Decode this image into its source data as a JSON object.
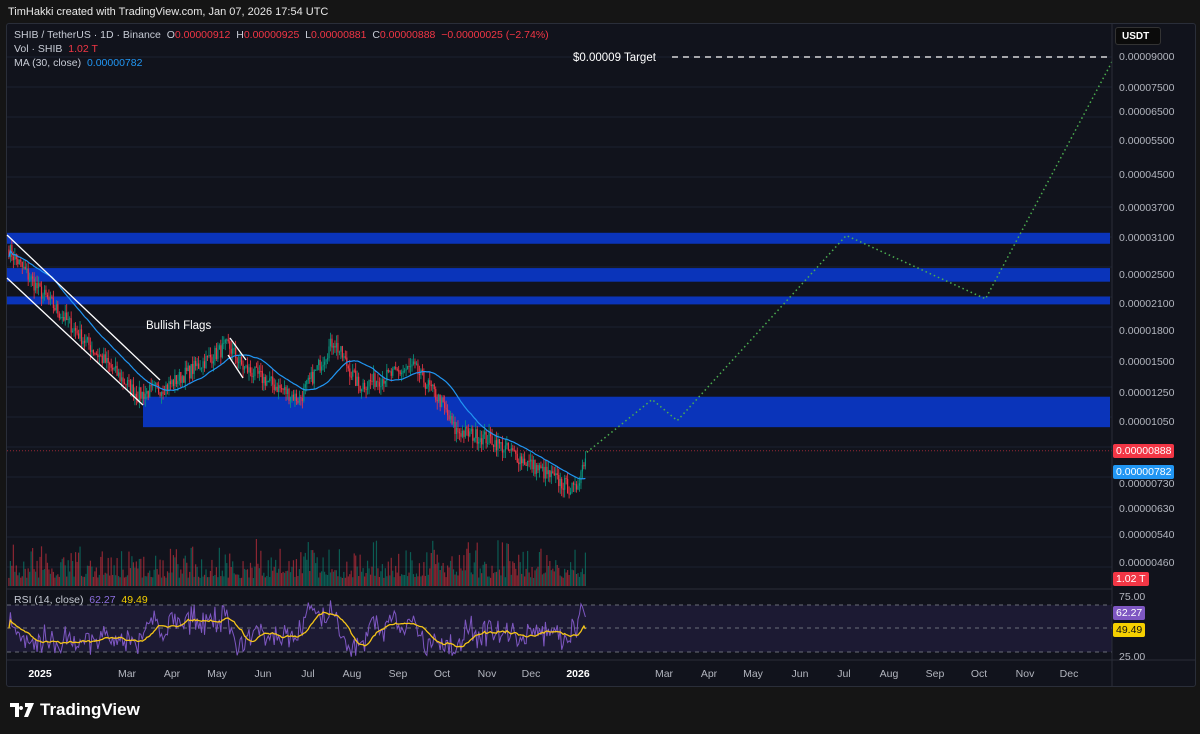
{
  "header": {
    "credit": "TimHakki created with TradingView.com, Jan 07, 2026 17:54 UTC"
  },
  "legend": {
    "symbol": "SHIB / TetherUS · 1D · Binance",
    "o_label": "O",
    "o": "0.00000912",
    "h_label": "H",
    "h": "0.00000925",
    "l_label": "L",
    "l": "0.00000881",
    "c_label": "C",
    "c": "0.00000888",
    "change": "−0.00000025 (−2.74%)",
    "vol_label": "Vol · SHIB",
    "vol": "1.02 T",
    "ma_label": "MA (30, close)",
    "ma": "0.00000782",
    "rsi_label": "RSI (14, close)",
    "rsi": "62.27",
    "rsi_ma": "49.49"
  },
  "currency_button": "USDT",
  "footer": {
    "logo": "TradingView"
  },
  "colors": {
    "up": "#089981",
    "down": "#f23645",
    "ma": "#2196f3",
    "zone": "#0a37c8",
    "projection": "#4caf50",
    "rsi": "#7e57c2",
    "rsi_ma": "#f5c518"
  },
  "chart_data": {
    "type": "candlestick",
    "scale": "log",
    "annotations": {
      "bullish_flags": "Bullish Flags",
      "target": "$0.00009 Target"
    },
    "price_axis": [
      "0.00009000",
      "0.00007500",
      "0.00006500",
      "0.00005500",
      "0.00004500",
      "0.00003700",
      "0.00003100",
      "0.00002500",
      "0.00002100",
      "0.00001800",
      "0.00001500",
      "0.00001250",
      "0.00001050",
      "0.00000730",
      "0.00000630",
      "0.00000540",
      "0.00000460"
    ],
    "price_tags": {
      "last": "0.00000888",
      "ma": "0.00000782",
      "volume": "1.02 T",
      "rsi": "62.27",
      "rsi_ma": "49.49"
    },
    "rsi_axis": [
      "75.00",
      "25.00"
    ],
    "time_axis": [
      "2025",
      "Mar",
      "Apr",
      "May",
      "Jun",
      "Jul",
      "Aug",
      "Sep",
      "Oct",
      "Nov",
      "Dec",
      "2026",
      "Mar",
      "Apr",
      "May",
      "Jun",
      "Jul",
      "Aug",
      "Sep",
      "Oct",
      "Nov",
      "Dec"
    ],
    "close_path": [
      [
        "2024-12-13",
        2.9e-05
      ],
      [
        "2025-01-02",
        2.29e-05
      ],
      [
        "2025-02-05",
        1.65e-05
      ],
      [
        "2025-03-10",
        1.23e-05
      ],
      [
        "2025-03-30",
        1.3e-05
      ],
      [
        "2025-05-10",
        1.65e-05
      ],
      [
        "2025-05-20",
        1.45e-05
      ],
      [
        "2025-06-27",
        1.2e-05
      ],
      [
        "2025-07-20",
        1.7e-05
      ],
      [
        "2025-08-06",
        1.3e-05
      ],
      [
        "2025-09-12",
        1.45e-05
      ],
      [
        "2025-09-30",
        1.19e-05
      ],
      [
        "2025-10-10",
        1e-05
      ],
      [
        "2025-11-03",
        9.5e-06
      ],
      [
        "2025-11-23",
        8.5e-06
      ],
      [
        "2025-12-30",
        7e-06
      ],
      [
        "2026-01-07",
        8.88e-06
      ]
    ],
    "zones": [
      {
        "from": 3e-05,
        "to": 3.2e-05
      },
      {
        "from": 2.4e-05,
        "to": 2.6e-05
      },
      {
        "from": 2.1e-05,
        "to": 2.2e-05
      },
      {
        "from": 1.02e-05,
        "to": 1.22e-05
      }
    ],
    "projection": [
      [
        "2026-01-07",
        8.8e-06
      ],
      [
        "2026-02-20",
        1.2e-05
      ],
      [
        "2026-03-09",
        1.06e-05
      ],
      [
        "2026-07-01",
        3.15e-05
      ],
      [
        "2026-10-03",
        2.17e-05
      ],
      [
        "2026-12-28",
        8.85e-05
      ]
    ],
    "target": 9e-05
  }
}
